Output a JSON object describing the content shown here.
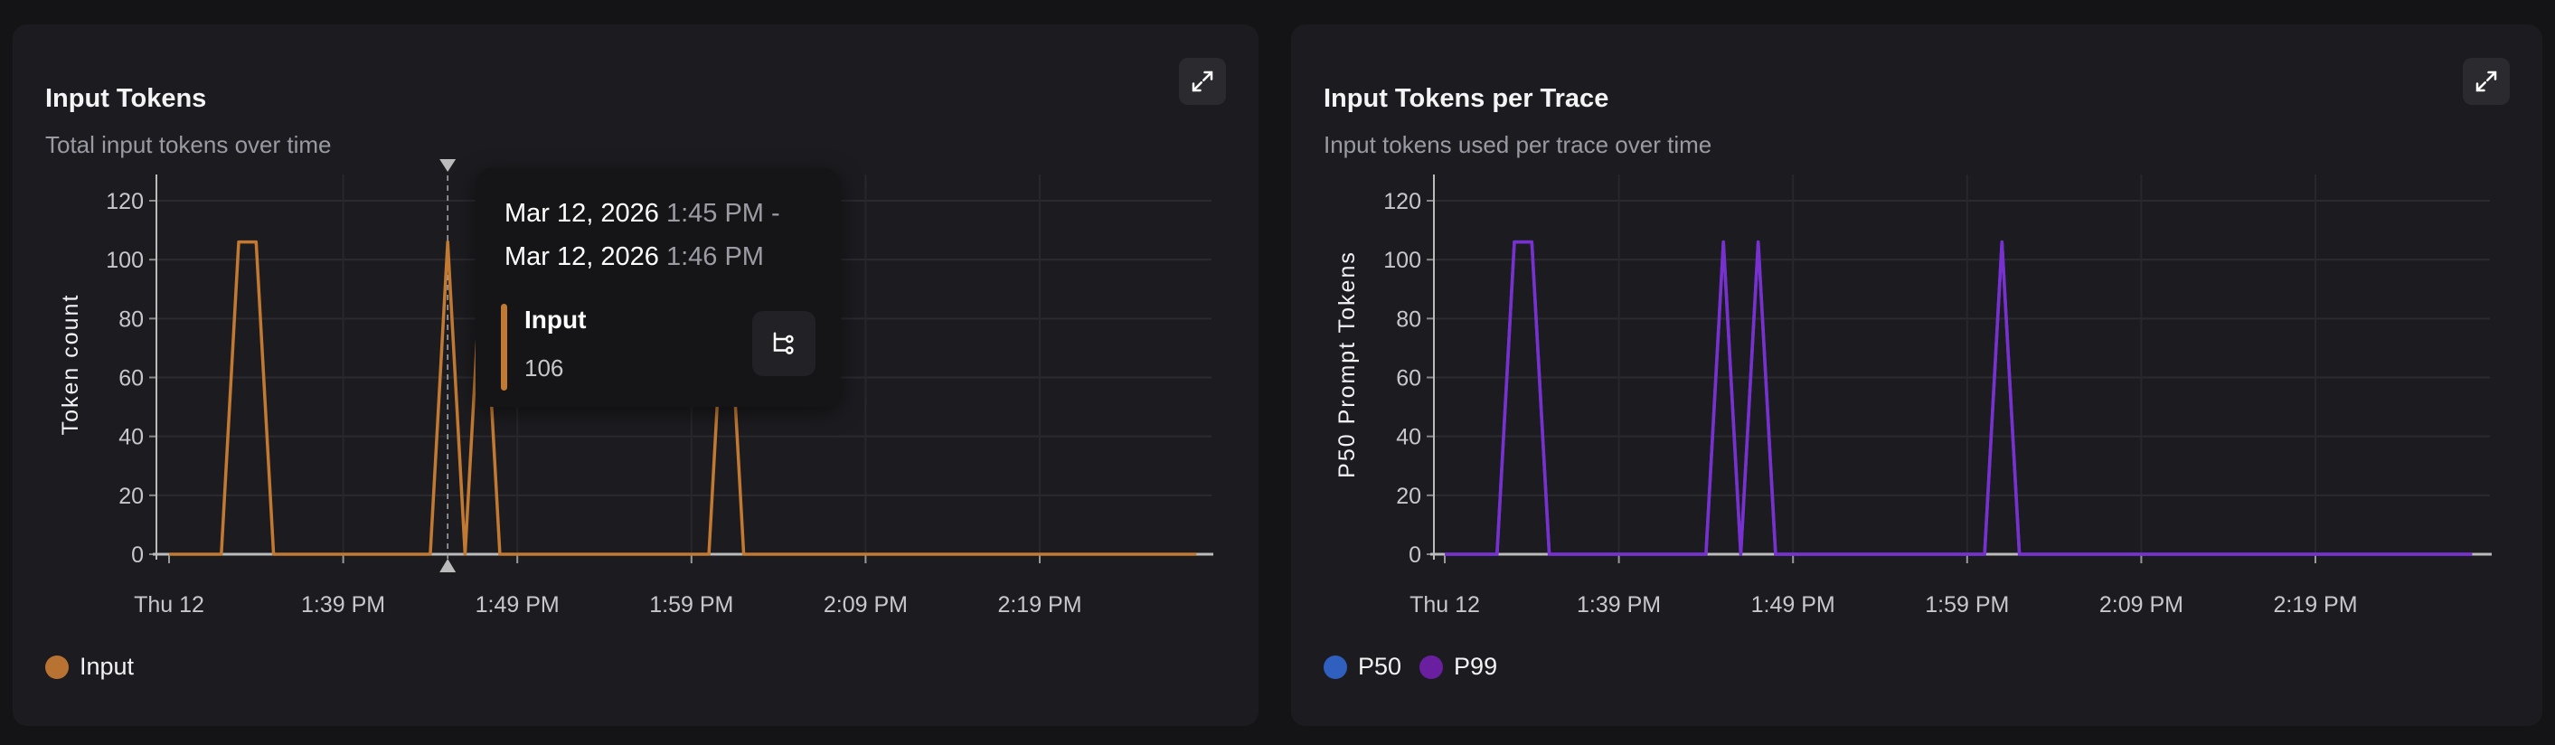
{
  "colors": {
    "background": "#141416",
    "card": "#1c1c20",
    "input": "#c27a33",
    "p50": "#2f5fbf",
    "p99": "#6a1fa0",
    "p99_line": "#7a30d0"
  },
  "cards": [
    {
      "title": "Input Tokens",
      "subtitle": "Total input tokens over time",
      "expand_icon": "expand-icon",
      "legend": [
        {
          "label": "Input",
          "color": "#c27a33"
        }
      ],
      "tooltip": {
        "start_date": "Mar 12, 2026",
        "start_time": "1:45 PM -",
        "end_date": "Mar 12, 2026",
        "end_time": "1:46 PM",
        "series": "Input",
        "value": "106",
        "action_icon": "trace-flow-icon"
      }
    },
    {
      "title": "Input Tokens per Trace",
      "subtitle": "Input tokens used per trace over time",
      "expand_icon": "expand-icon",
      "legend": [
        {
          "label": "P50",
          "color": "#2f5fbf"
        },
        {
          "label": "P99",
          "color": "#6a1fa0"
        }
      ]
    }
  ],
  "chart_data": [
    {
      "type": "line",
      "title": "Input Tokens",
      "ylabel": "Token count",
      "xlabel": "",
      "ylim": [
        0,
        128
      ],
      "yticks": [
        0,
        20,
        40,
        60,
        80,
        100,
        120
      ],
      "xticks": [
        "Thu 12",
        "1:39 PM",
        "1:49 PM",
        "1:59 PM",
        "2:09 PM",
        "2:19 PM"
      ],
      "grid": true,
      "legend": "bottom-left",
      "hover": "1:45 PM",
      "series": [
        {
          "name": "Input",
          "color": "#c27a33",
          "x": [
            "1:29 PM",
            "1:32 PM",
            "1:33 PM",
            "1:34 PM",
            "1:35 PM",
            "1:44 PM",
            "1:45 PM",
            "1:46 PM",
            "1:47 PM",
            "1:48 PM",
            "2:00 PM",
            "2:01 PM",
            "2:02 PM",
            "2:28 PM"
          ],
          "values": [
            0,
            0,
            106,
            106,
            0,
            0,
            106,
            0,
            106,
            0,
            0,
            106,
            0,
            0
          ]
        }
      ]
    },
    {
      "type": "line",
      "title": "Input Tokens per Trace",
      "ylabel": "P50 Prompt Tokens",
      "xlabel": "",
      "ylim": [
        0,
        128
      ],
      "yticks": [
        0,
        20,
        40,
        60,
        80,
        100,
        120
      ],
      "xticks": [
        "Thu 12",
        "1:39 PM",
        "1:49 PM",
        "1:59 PM",
        "2:09 PM",
        "2:19 PM"
      ],
      "grid": true,
      "legend": "bottom-left",
      "series": [
        {
          "name": "P50",
          "color": "#2f5fbf",
          "x": [
            "1:29 PM",
            "1:32 PM",
            "1:33 PM",
            "1:34 PM",
            "1:35 PM",
            "1:44 PM",
            "1:45 PM",
            "1:46 PM",
            "1:47 PM",
            "1:48 PM",
            "2:00 PM",
            "2:01 PM",
            "2:02 PM",
            "2:28 PM"
          ],
          "values": [
            0,
            0,
            106,
            106,
            0,
            0,
            106,
            0,
            106,
            0,
            0,
            106,
            0,
            0
          ]
        },
        {
          "name": "P99",
          "color": "#7a30d0",
          "x": [
            "1:29 PM",
            "1:32 PM",
            "1:33 PM",
            "1:34 PM",
            "1:35 PM",
            "1:44 PM",
            "1:45 PM",
            "1:46 PM",
            "1:47 PM",
            "1:48 PM",
            "2:00 PM",
            "2:01 PM",
            "2:02 PM",
            "2:28 PM"
          ],
          "values": [
            0,
            0,
            106,
            106,
            0,
            0,
            106,
            0,
            106,
            0,
            0,
            106,
            0,
            0
          ]
        }
      ]
    }
  ]
}
